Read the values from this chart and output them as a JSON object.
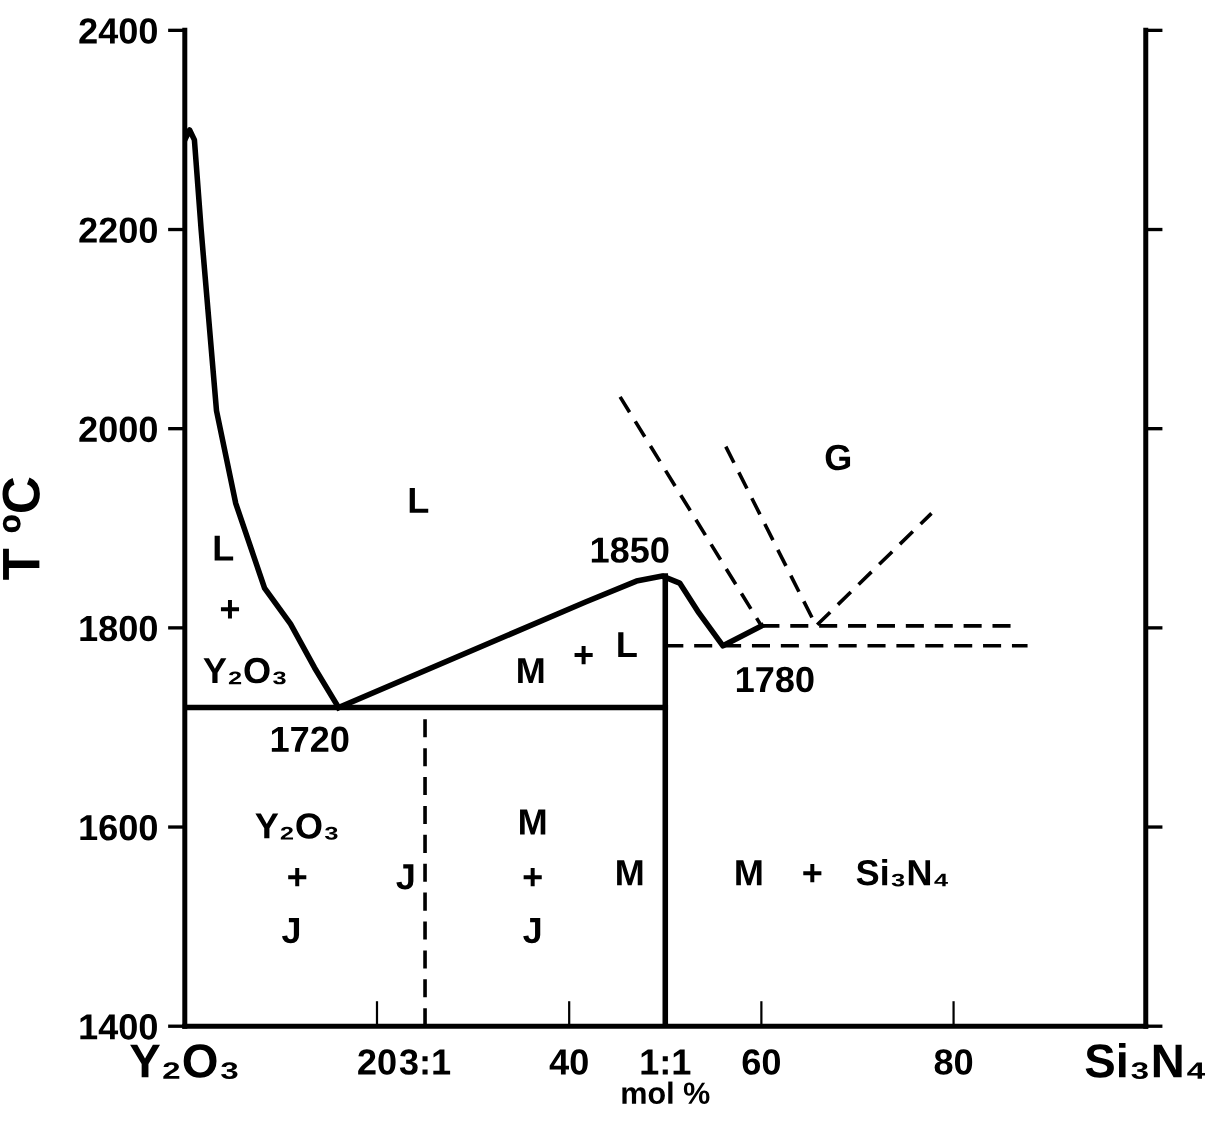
{
  "chart_data": {
    "type": "line",
    "xlabel": "mol %",
    "ylabel": "T ºC",
    "xlim": [
      0,
      100
    ],
    "ylim": [
      1400,
      2400
    ],
    "xticks": [
      {
        "value": 0,
        "label": "Y₂O₃"
      },
      20,
      {
        "value": 25,
        "label": "3:1"
      },
      40,
      {
        "value": 50,
        "label": "1:1"
      },
      60,
      80,
      {
        "value": 100,
        "label": "Si₃N₄"
      }
    ],
    "yticks": [
      1400,
      1600,
      1800,
      2000,
      2200,
      2400
    ],
    "grid": false,
    "marker": "none",
    "series": [
      {
        "color": "#000000",
        "line_style": "solid",
        "x": [
          0,
          0.5,
          1,
          1.7,
          3.3,
          5.3,
          8.3,
          11,
          13.5,
          16
        ],
        "values": [
          2290,
          2300,
          2290,
          2200,
          2018,
          1925,
          1840,
          1804,
          1760,
          1720
        ]
      },
      {
        "color": "#000000",
        "line_style": "solid",
        "x": [
          16,
          41.7,
          47,
          49.7,
          51.5,
          53.5,
          56,
          60
        ],
        "values": [
          1720,
          1826,
          1847,
          1852,
          1845,
          1815,
          1782,
          1802
        ]
      },
      {
        "color": "#000000",
        "line_style": "solid",
        "x": [
          0,
          50
        ],
        "values": [
          1720,
          1720
        ]
      },
      {
        "color": "#000000",
        "line_style": "solid",
        "x": [
          50,
          50
        ],
        "values": [
          1400,
          1852
        ]
      },
      {
        "color": "#000000",
        "line_style": "dashed",
        "x": [
          25,
          25
        ],
        "values": [
          1400,
          1720
        ]
      },
      {
        "color": "#000000",
        "line_style": "dashed",
        "x": [
          60,
          86.7
        ],
        "values": [
          1802,
          1802
        ]
      },
      {
        "color": "#000000",
        "line_style": "dashed",
        "x": [
          50,
          87.7
        ],
        "values": [
          1782,
          1782
        ]
      },
      {
        "color": "#000000",
        "line_style": "dashed",
        "x": [
          45.3,
          60
        ],
        "values": [
          2032,
          1802
        ]
      },
      {
        "color": "#000000",
        "line_style": "dashed",
        "x": [
          56.3,
          65.7,
          77.7
        ],
        "values": [
          1982,
          1802,
          1915
        ]
      }
    ],
    "annotations": [
      "L",
      "L",
      "+",
      "Y₂O₃",
      "1850",
      "G",
      "M",
      "+",
      "L",
      "1780",
      "1720",
      "Y₂O₃",
      "+",
      "J",
      "J",
      "M",
      "+",
      "J",
      "M",
      "M",
      "+",
      "Si₃N₄"
    ]
  }
}
